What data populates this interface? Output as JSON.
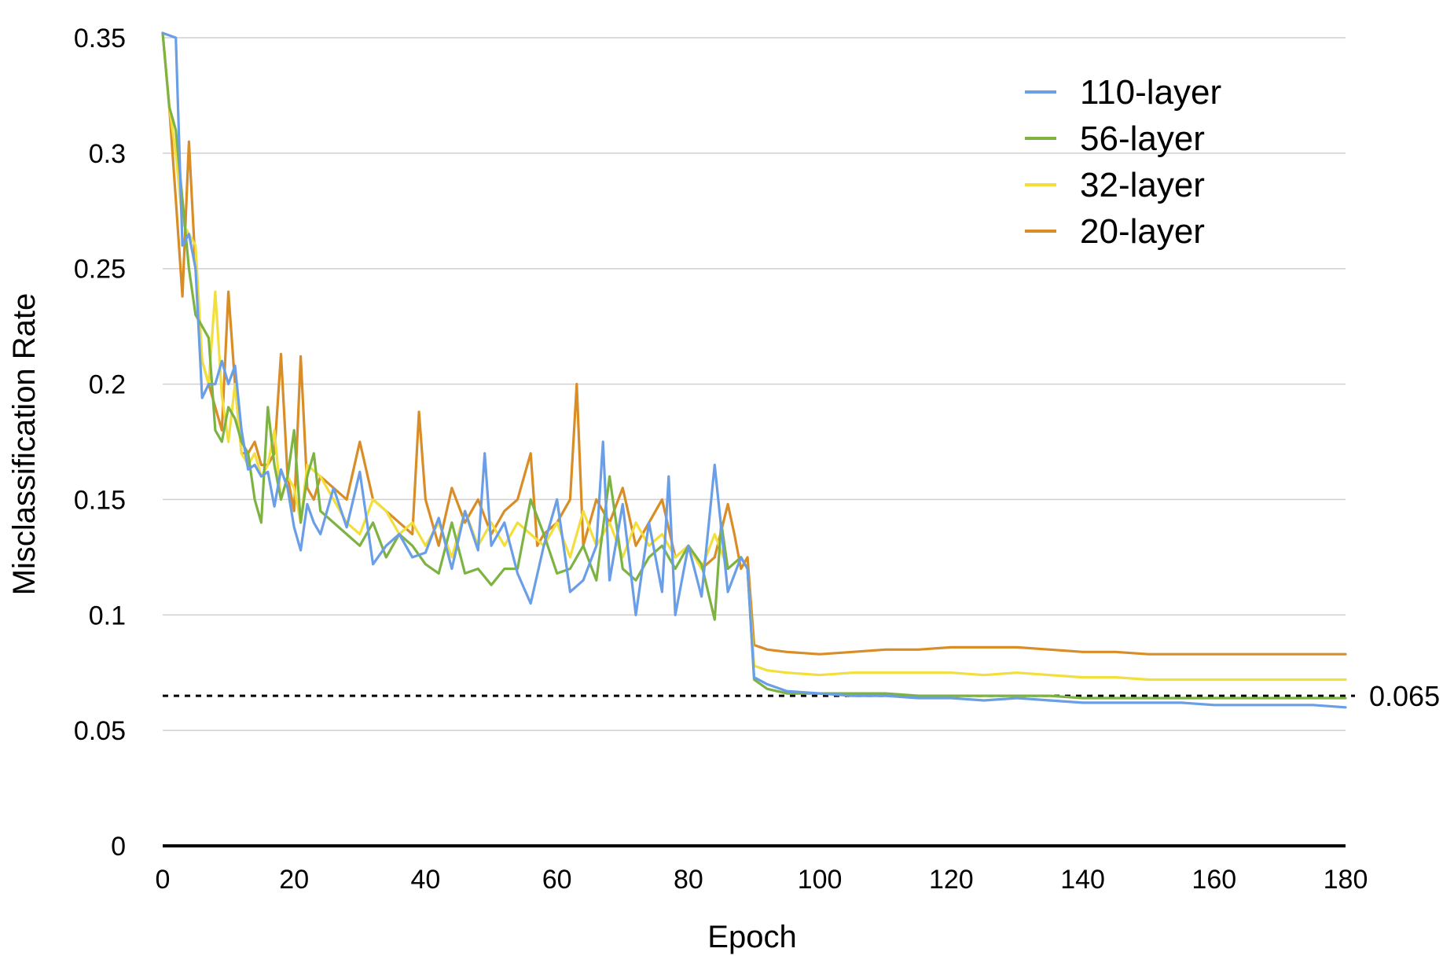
{
  "chart_data": {
    "type": "line",
    "title": "",
    "xlabel": "Epoch",
    "ylabel": "Misclassification Rate",
    "xlim": [
      0,
      180
    ],
    "ylim": [
      0,
      0.35
    ],
    "x_ticks": [
      0,
      20,
      40,
      60,
      80,
      100,
      120,
      140,
      160,
      180
    ],
    "x_tick_labels": [
      "0",
      "20",
      "40",
      "60",
      "80",
      "100",
      "120",
      "140",
      "160",
      "180"
    ],
    "y_ticks": [
      0,
      0.05,
      0.1,
      0.15,
      0.2,
      0.25,
      0.3,
      0.35
    ],
    "y_tick_labels": [
      "0",
      "0.05",
      "0.1",
      "0.15",
      "0.2",
      "0.25",
      "0.3",
      "0.35"
    ],
    "grid": "horizontal",
    "legend_position": "top-right",
    "reference_line": {
      "y": 0.065,
      "label": "0.065",
      "style": "dashed",
      "color": "#000000"
    },
    "series": [
      {
        "name": "110-layer",
        "color": "#6a9ee6",
        "x": [
          0,
          2,
          3,
          4,
          5,
          6,
          7,
          8,
          9,
          10,
          11,
          12,
          13,
          14,
          15,
          16,
          17,
          18,
          19,
          20,
          21,
          22,
          23,
          24,
          26,
          28,
          30,
          32,
          34,
          36,
          38,
          40,
          42,
          44,
          46,
          48,
          49,
          50,
          52,
          54,
          56,
          58,
          60,
          62,
          64,
          66,
          67,
          68,
          70,
          72,
          74,
          76,
          77,
          78,
          80,
          82,
          84,
          86,
          88,
          89,
          90,
          92,
          95,
          100,
          105,
          110,
          115,
          120,
          125,
          130,
          135,
          140,
          145,
          150,
          155,
          160,
          165,
          170,
          175,
          180
        ],
        "y": [
          0.36,
          0.35,
          0.26,
          0.265,
          0.25,
          0.194,
          0.2,
          0.2,
          0.21,
          0.2,
          0.208,
          0.18,
          0.163,
          0.165,
          0.16,
          0.162,
          0.147,
          0.163,
          0.155,
          0.138,
          0.128,
          0.148,
          0.14,
          0.135,
          0.155,
          0.138,
          0.162,
          0.122,
          0.13,
          0.135,
          0.125,
          0.127,
          0.142,
          0.12,
          0.145,
          0.128,
          0.17,
          0.13,
          0.14,
          0.118,
          0.105,
          0.13,
          0.15,
          0.11,
          0.115,
          0.13,
          0.175,
          0.115,
          0.148,
          0.1,
          0.14,
          0.11,
          0.16,
          0.1,
          0.13,
          0.108,
          0.165,
          0.11,
          0.125,
          0.12,
          0.073,
          0.07,
          0.067,
          0.066,
          0.065,
          0.065,
          0.064,
          0.064,
          0.063,
          0.064,
          0.063,
          0.062,
          0.062,
          0.062,
          0.062,
          0.061,
          0.061,
          0.061,
          0.061,
          0.06
        ]
      },
      {
        "name": "56-layer",
        "color": "#7db342",
        "x": [
          0,
          1,
          2,
          3,
          4,
          5,
          6,
          7,
          8,
          9,
          10,
          11,
          12,
          13,
          14,
          15,
          16,
          17,
          18,
          19,
          20,
          21,
          22,
          23,
          24,
          26,
          28,
          30,
          32,
          34,
          36,
          38,
          40,
          42,
          44,
          46,
          48,
          50,
          52,
          54,
          56,
          58,
          60,
          62,
          64,
          66,
          68,
          70,
          72,
          74,
          76,
          78,
          80,
          82,
          84,
          85,
          86,
          88,
          89,
          90,
          92,
          95,
          100,
          105,
          110,
          115,
          120,
          125,
          130,
          135,
          140,
          145,
          150,
          155,
          160,
          165,
          170,
          175,
          180
        ],
        "y": [
          0.36,
          0.32,
          0.31,
          0.28,
          0.25,
          0.23,
          0.225,
          0.22,
          0.18,
          0.175,
          0.19,
          0.185,
          0.175,
          0.17,
          0.15,
          0.14,
          0.19,
          0.165,
          0.15,
          0.16,
          0.18,
          0.14,
          0.16,
          0.17,
          0.145,
          0.14,
          0.135,
          0.13,
          0.14,
          0.125,
          0.135,
          0.13,
          0.122,
          0.118,
          0.14,
          0.118,
          0.12,
          0.113,
          0.12,
          0.12,
          0.15,
          0.135,
          0.118,
          0.12,
          0.13,
          0.115,
          0.16,
          0.12,
          0.115,
          0.125,
          0.13,
          0.12,
          0.13,
          0.122,
          0.098,
          0.14,
          0.12,
          0.125,
          0.12,
          0.072,
          0.068,
          0.066,
          0.066,
          0.066,
          0.066,
          0.065,
          0.065,
          0.065,
          0.065,
          0.065,
          0.064,
          0.064,
          0.064,
          0.064,
          0.064,
          0.064,
          0.064,
          0.064,
          0.064
        ]
      },
      {
        "name": "32-layer",
        "color": "#f2df3c",
        "x": [
          0,
          1,
          2,
          3,
          4,
          5,
          6,
          7,
          8,
          9,
          10,
          11,
          12,
          13,
          14,
          15,
          16,
          17,
          18,
          19,
          20,
          21,
          22,
          24,
          26,
          28,
          30,
          32,
          34,
          36,
          38,
          40,
          42,
          44,
          46,
          48,
          50,
          52,
          54,
          56,
          58,
          60,
          62,
          64,
          66,
          68,
          70,
          72,
          74,
          76,
          78,
          80,
          82,
          84,
          86,
          88,
          89,
          90,
          92,
          95,
          100,
          105,
          110,
          115,
          120,
          125,
          130,
          135,
          140,
          145,
          150,
          155,
          160,
          165,
          170,
          175,
          180
        ],
        "y": [
          0.36,
          0.32,
          0.3,
          0.27,
          0.265,
          0.26,
          0.21,
          0.2,
          0.24,
          0.195,
          0.175,
          0.2,
          0.17,
          0.165,
          0.17,
          0.16,
          0.165,
          0.18,
          0.15,
          0.16,
          0.155,
          0.14,
          0.165,
          0.16,
          0.15,
          0.14,
          0.135,
          0.15,
          0.145,
          0.135,
          0.14,
          0.13,
          0.14,
          0.125,
          0.145,
          0.13,
          0.14,
          0.13,
          0.14,
          0.135,
          0.13,
          0.14,
          0.125,
          0.145,
          0.13,
          0.14,
          0.125,
          0.14,
          0.13,
          0.135,
          0.125,
          0.13,
          0.12,
          0.135,
          0.12,
          0.125,
          0.12,
          0.078,
          0.076,
          0.075,
          0.074,
          0.075,
          0.075,
          0.075,
          0.075,
          0.074,
          0.075,
          0.074,
          0.073,
          0.073,
          0.072,
          0.072,
          0.072,
          0.072,
          0.072,
          0.072,
          0.072
        ]
      },
      {
        "name": "20-layer",
        "color": "#d98d27",
        "x": [
          0,
          1,
          2,
          3,
          4,
          5,
          6,
          7,
          8,
          9,
          10,
          11,
          12,
          13,
          14,
          15,
          16,
          17,
          18,
          19,
          20,
          21,
          22,
          23,
          24,
          26,
          28,
          30,
          32,
          34,
          36,
          38,
          39,
          40,
          42,
          44,
          46,
          48,
          50,
          52,
          54,
          56,
          57,
          58,
          60,
          62,
          63,
          64,
          66,
          68,
          70,
          72,
          74,
          76,
          78,
          80,
          82,
          84,
          86,
          87,
          88,
          89,
          90,
          92,
          95,
          100,
          105,
          110,
          115,
          120,
          125,
          130,
          135,
          140,
          145,
          150,
          155,
          160,
          165,
          170,
          175,
          180
        ],
        "y": [
          0.36,
          0.32,
          0.28,
          0.238,
          0.305,
          0.25,
          0.21,
          0.2,
          0.19,
          0.18,
          0.24,
          0.2,
          0.17,
          0.17,
          0.175,
          0.165,
          0.165,
          0.17,
          0.213,
          0.16,
          0.145,
          0.212,
          0.155,
          0.15,
          0.16,
          0.155,
          0.15,
          0.175,
          0.15,
          0.145,
          0.14,
          0.135,
          0.188,
          0.15,
          0.13,
          0.155,
          0.14,
          0.15,
          0.135,
          0.145,
          0.15,
          0.17,
          0.13,
          0.135,
          0.14,
          0.15,
          0.2,
          0.13,
          0.15,
          0.14,
          0.155,
          0.13,
          0.14,
          0.15,
          0.125,
          0.13,
          0.12,
          0.125,
          0.148,
          0.135,
          0.12,
          0.125,
          0.087,
          0.085,
          0.084,
          0.083,
          0.084,
          0.085,
          0.085,
          0.086,
          0.086,
          0.086,
          0.085,
          0.084,
          0.084,
          0.083,
          0.083,
          0.083,
          0.083,
          0.083,
          0.083,
          0.083
        ]
      }
    ]
  }
}
